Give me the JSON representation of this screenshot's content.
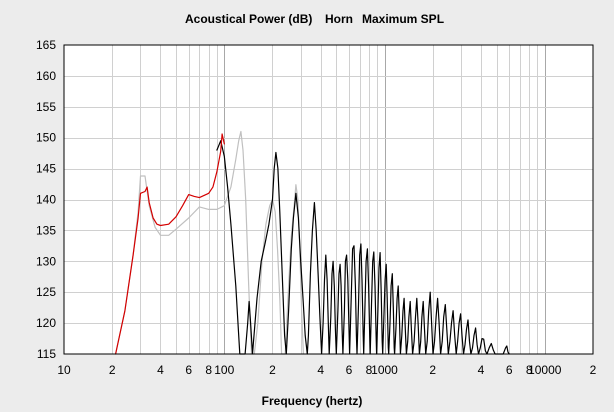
{
  "chart_data": {
    "type": "line",
    "title": "Acoustical Power (dB)",
    "title_parts": [
      "Horn",
      "Maximum SPL"
    ],
    "xlabel": "Frequency (hertz)",
    "ylabel": "",
    "x_scale": "log",
    "xlim": [
      10,
      20000
    ],
    "ylim": [
      115,
      165
    ],
    "grid": true,
    "legend": "none",
    "y_ticks": [
      "115",
      "120",
      "125",
      "130",
      "135",
      "140",
      "145",
      "150",
      "155",
      "160",
      "165"
    ],
    "x_ticks": [
      {
        "value": 10,
        "label": "10"
      },
      {
        "value": 20,
        "label": "2"
      },
      {
        "value": 40,
        "label": "4"
      },
      {
        "value": 60,
        "label": "6"
      },
      {
        "value": 80,
        "label": "8"
      },
      {
        "value": 100,
        "label": "100"
      },
      {
        "value": 200,
        "label": "2"
      },
      {
        "value": 400,
        "label": "4"
      },
      {
        "value": 600,
        "label": "6"
      },
      {
        "value": 800,
        "label": "8"
      },
      {
        "value": 1000,
        "label": "1000"
      },
      {
        "value": 2000,
        "label": "2"
      },
      {
        "value": 4000,
        "label": "4"
      },
      {
        "value": 6000,
        "label": "6"
      },
      {
        "value": 8000,
        "label": "8"
      },
      {
        "value": 10000,
        "label": "10000"
      },
      {
        "value": 20000,
        "label": "2"
      }
    ],
    "colors": {
      "plot_bg": "#ffffff",
      "grid": "#d0d0d0",
      "grid_major": "#a8a8a8",
      "limit_curve": "#d40000",
      "power_curve": "#000000",
      "reference_curve": "#c0c0c0"
    },
    "series": [
      {
        "color": "#c0c0c0",
        "points": [
          [
            21,
            115
          ],
          [
            24,
            122
          ],
          [
            27,
            131
          ],
          [
            29,
            138
          ],
          [
            30,
            143.8
          ],
          [
            32,
            143.8
          ],
          [
            34,
            139
          ],
          [
            37,
            135.5
          ],
          [
            40,
            134.2
          ],
          [
            45,
            134.2
          ],
          [
            50,
            135.2
          ],
          [
            60,
            137
          ],
          [
            70,
            138.8
          ],
          [
            80,
            138.4
          ],
          [
            90,
            138.4
          ],
          [
            100,
            139
          ],
          [
            110,
            142
          ],
          [
            118,
            146.5
          ],
          [
            123,
            149.5
          ],
          [
            127,
            151
          ],
          [
            131,
            148
          ],
          [
            136,
            140
          ],
          [
            142,
            126
          ],
          [
            148,
            115
          ],
          [
            154,
            115
          ],
          [
            162,
            120
          ],
          [
            172,
            130
          ],
          [
            182,
            136
          ],
          [
            192,
            139
          ],
          [
            200,
            140
          ],
          [
            208,
            138
          ],
          [
            215,
            132
          ],
          [
            222,
            124
          ],
          [
            228,
            115
          ],
          [
            240,
            115
          ],
          [
            252,
            126
          ],
          [
            262,
            134
          ],
          [
            274,
            139.5
          ],
          [
            280,
            142.4
          ],
          [
            288,
            140
          ],
          [
            296,
            132
          ],
          [
            304,
            122
          ],
          [
            312,
            115
          ]
        ]
      },
      {
        "color": "#000000",
        "points": [
          [
            90,
            148
          ],
          [
            95,
            149.5
          ],
          [
            100,
            147
          ],
          [
            105,
            142
          ],
          [
            110,
            136
          ],
          [
            118,
            126
          ],
          [
            125,
            115
          ],
          [
            135,
            115
          ],
          [
            140,
            120
          ],
          [
            143,
            123.5
          ],
          [
            146,
            120
          ],
          [
            150,
            115
          ],
          [
            160,
            124
          ],
          [
            170,
            130
          ],
          [
            180,
            133
          ],
          [
            190,
            136
          ],
          [
            200,
            140
          ],
          [
            205,
            145
          ],
          [
            210,
            147.6
          ],
          [
            216,
            145
          ],
          [
            222,
            138
          ],
          [
            230,
            128
          ],
          [
            238,
            118
          ],
          [
            244,
            115
          ],
          [
            252,
            122
          ],
          [
            262,
            132
          ],
          [
            270,
            137
          ],
          [
            280,
            141
          ],
          [
            290,
            137
          ],
          [
            300,
            130
          ],
          [
            310,
            124
          ],
          [
            320,
            118
          ],
          [
            330,
            115
          ],
          [
            335,
            118
          ],
          [
            345,
            128
          ],
          [
            355,
            135
          ],
          [
            365,
            139.5
          ],
          [
            375,
            135
          ],
          [
            385,
            128
          ],
          [
            395,
            121
          ],
          [
            405,
            115
          ],
          [
            414,
            120
          ],
          [
            422,
            127
          ],
          [
            430,
            131
          ],
          [
            438,
            127
          ],
          [
            446,
            120
          ],
          [
            452,
            115
          ],
          [
            462,
            121
          ],
          [
            470,
            128
          ],
          [
            478,
            130
          ],
          [
            486,
            126
          ],
          [
            494,
            119
          ],
          [
            500,
            115
          ],
          [
            512,
            122
          ],
          [
            520,
            128
          ],
          [
            528,
            129.5
          ],
          [
            536,
            126
          ],
          [
            544,
            119
          ],
          [
            550,
            115
          ],
          [
            562,
            122
          ],
          [
            570,
            130
          ],
          [
            580,
            131
          ],
          [
            590,
            127
          ],
          [
            600,
            119
          ],
          [
            606,
            115
          ],
          [
            620,
            124
          ],
          [
            632,
            132
          ],
          [
            645,
            132.5
          ],
          [
            658,
            126
          ],
          [
            668,
            118
          ],
          [
            674,
            115
          ],
          [
            688,
            123
          ],
          [
            700,
            131
          ],
          [
            712,
            132.8
          ],
          [
            724,
            127
          ],
          [
            736,
            118
          ],
          [
            742,
            115
          ],
          [
            756,
            123
          ],
          [
            768,
            130
          ],
          [
            782,
            132
          ],
          [
            796,
            126
          ],
          [
            808,
            118
          ],
          [
            814,
            115
          ],
          [
            830,
            123
          ],
          [
            844,
            130
          ],
          [
            858,
            131.5
          ],
          [
            872,
            126
          ],
          [
            886,
            118
          ],
          [
            892,
            115
          ],
          [
            910,
            122
          ],
          [
            924,
            129
          ],
          [
            938,
            131.4
          ],
          [
            954,
            125
          ],
          [
            968,
            117
          ],
          [
            974,
            115
          ],
          [
            992,
            121
          ],
          [
            1008,
            127
          ],
          [
            1024,
            129.5
          ],
          [
            1040,
            124
          ],
          [
            1056,
            116
          ],
          [
            1062,
            115
          ],
          [
            1082,
            120
          ],
          [
            1100,
            126
          ],
          [
            1118,
            128
          ],
          [
            1136,
            122
          ],
          [
            1150,
            116
          ],
          [
            1156,
            115
          ],
          [
            1178,
            119
          ],
          [
            1198,
            124
          ],
          [
            1218,
            126
          ],
          [
            1238,
            121
          ],
          [
            1256,
            115
          ],
          [
            1282,
            118
          ],
          [
            1304,
            122
          ],
          [
            1326,
            124
          ],
          [
            1348,
            119
          ],
          [
            1370,
            115
          ],
          [
            1396,
            117
          ],
          [
            1420,
            121
          ],
          [
            1446,
            123.5
          ],
          [
            1472,
            119
          ],
          [
            1498,
            115
          ],
          [
            1530,
            117
          ],
          [
            1560,
            121
          ],
          [
            1590,
            124
          ],
          [
            1620,
            120
          ],
          [
            1650,
            115
          ],
          [
            1682,
            117
          ],
          [
            1712,
            121
          ],
          [
            1744,
            123.5
          ],
          [
            1776,
            119
          ],
          [
            1808,
            115
          ],
          [
            1848,
            117
          ],
          [
            1888,
            122
          ],
          [
            1928,
            125
          ],
          [
            1968,
            120
          ],
          [
            2006,
            115
          ],
          [
            2052,
            117
          ],
          [
            2098,
            121
          ],
          [
            2144,
            124
          ],
          [
            2190,
            120
          ],
          [
            2238,
            115
          ],
          [
            2290,
            117
          ],
          [
            2342,
            121
          ],
          [
            2394,
            123
          ],
          [
            2446,
            119
          ],
          [
            2500,
            115
          ],
          [
            2560,
            117
          ],
          [
            2620,
            120
          ],
          [
            2680,
            122
          ],
          [
            2740,
            118
          ],
          [
            2800,
            115
          ],
          [
            2860,
            117
          ],
          [
            2922,
            120
          ],
          [
            2984,
            121.5
          ],
          [
            3046,
            118
          ],
          [
            3110,
            115
          ],
          [
            3180,
            116.5
          ],
          [
            3250,
            119
          ],
          [
            3320,
            120.5
          ],
          [
            3390,
            117
          ],
          [
            3460,
            115
          ],
          [
            3540,
            116
          ],
          [
            3620,
            118
          ],
          [
            3700,
            119.2
          ],
          [
            3780,
            116.5
          ],
          [
            3860,
            115
          ],
          [
            3960,
            116
          ],
          [
            4060,
            117.5
          ],
          [
            4160,
            117.4
          ],
          [
            4260,
            115.5
          ],
          [
            4360,
            115
          ],
          [
            4500,
            116
          ],
          [
            4640,
            116.7
          ],
          [
            4780,
            115.6
          ],
          [
            4900,
            115
          ],
          [
            5500,
            115
          ],
          [
            5700,
            116
          ],
          [
            5800,
            116.3
          ],
          [
            5900,
            115.3
          ],
          [
            6000,
            115
          ]
        ]
      },
      {
        "color": "#d40000",
        "points": [
          [
            21,
            115
          ],
          [
            24,
            122
          ],
          [
            27,
            131
          ],
          [
            29,
            137
          ],
          [
            30,
            141
          ],
          [
            32,
            141.3
          ],
          [
            33,
            142
          ],
          [
            34,
            139.5
          ],
          [
            36,
            137
          ],
          [
            38,
            136
          ],
          [
            40,
            135.8
          ],
          [
            45,
            136
          ],
          [
            50,
            137.2
          ],
          [
            55,
            139
          ],
          [
            60,
            140.8
          ],
          [
            65,
            140.5
          ],
          [
            70,
            140.3
          ],
          [
            80,
            141
          ],
          [
            85,
            142
          ],
          [
            90,
            144.5
          ],
          [
            95,
            147.8
          ],
          [
            97,
            150.6
          ],
          [
            99,
            149.5
          ],
          [
            100,
            149
          ]
        ]
      }
    ]
  }
}
